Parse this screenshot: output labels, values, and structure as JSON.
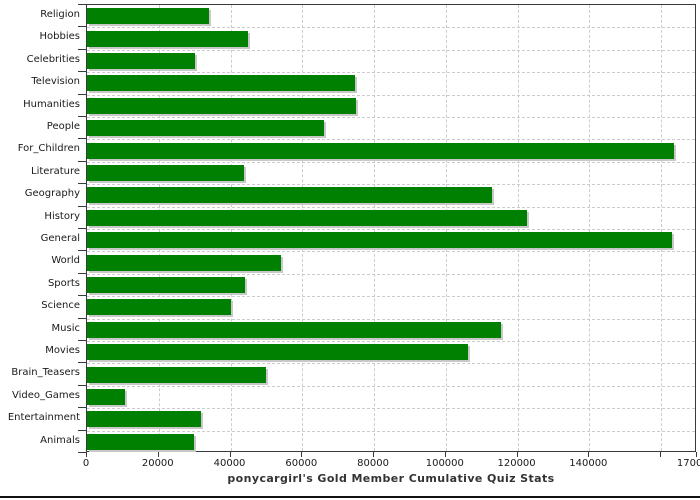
{
  "colors": {
    "bar": "#008000",
    "bar_shadow": "#c8c8c8",
    "grid": "#cccccc",
    "frame": "#3a3a3a",
    "text": "#1a1a1a",
    "title_text": "#333333",
    "bottom_rule": "#111111",
    "background": "#ffffff"
  },
  "chart_data": {
    "type": "bar",
    "orientation": "horizontal",
    "title": "ponycargirl's Gold Member Cumulative Quiz Stats",
    "categories": [
      "Religion",
      "Hobbies",
      "Celebrities",
      "Television",
      "Humanities",
      "People",
      "For_Children",
      "Literature",
      "Geography",
      "History",
      "General",
      "World",
      "Sports",
      "Science",
      "Music",
      "Movies",
      "Brain_Teasers",
      "Video_Games",
      "Entertainment",
      "Animals"
    ],
    "values": [
      34000,
      44800,
      30100,
      74600,
      75100,
      66100,
      163600,
      43700,
      112900,
      122700,
      162900,
      54200,
      44000,
      40000,
      115400,
      106100,
      50000,
      10500,
      31900,
      29900
    ],
    "xlim": [
      0,
      170000
    ],
    "x_tick_interval": 20000,
    "x_tick_values": [
      0,
      20000,
      40000,
      60000,
      80000,
      100000,
      120000,
      140000,
      160000,
      170000
    ],
    "x_tick_labels": [
      "0",
      "20000",
      "40000",
      "60000",
      "80000",
      "100000",
      "120000",
      "140000",
      "",
      "170000"
    ],
    "xlabel": "",
    "ylabel": "",
    "grid": true,
    "legend": false
  }
}
